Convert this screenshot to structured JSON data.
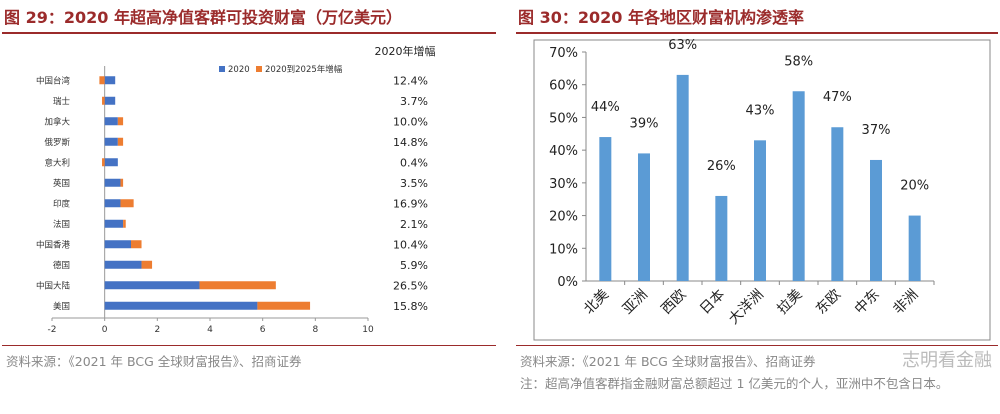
{
  "left": {
    "title": "图 29：2020 年超高净值客群可投资财富（万亿美元）",
    "source": "资料来源：《2021 年 BCG 全球财富报告》、招商证券",
    "growth_header": "2020年增幅"
  },
  "right": {
    "title": "图 30：2020 年各地区财富机构渗透率",
    "source": "资料来源：《2021 年 BCG 全球财富报告》、招商证券",
    "note": "注：超高净值客群指金融财富总额超过 1 亿美元的个人，亚洲中不包含日本。",
    "watermark": "志明看金融"
  },
  "chart_data": [
    {
      "type": "bar",
      "orientation": "horizontal",
      "stacked": true,
      "categories": [
        "中国台湾",
        "瑞士",
        "加拿大",
        "俄罗斯",
        "意大利",
        "英国",
        "印度",
        "法国",
        "中国香港",
        "德国",
        "中国大陆",
        "美国"
      ],
      "series": [
        {
          "name": "2020",
          "color": "#4472c4",
          "values": [
            0.4,
            0.4,
            0.5,
            0.5,
            0.5,
            0.6,
            0.6,
            0.7,
            1.0,
            1.4,
            3.6,
            5.8
          ]
        },
        {
          "name": "2020到2025年增幅",
          "color": "#ed7d31",
          "values": [
            -0.2,
            -0.1,
            0.2,
            0.2,
            -0.1,
            0.1,
            0.5,
            0.1,
            0.4,
            0.4,
            2.9,
            2.0
          ]
        }
      ],
      "growth_labels": [
        "12.4%",
        "3.7%",
        "10.0%",
        "14.8%",
        "0.4%",
        "3.5%",
        "16.9%",
        "2.1%",
        "10.4%",
        "5.9%",
        "26.5%",
        "15.8%"
      ],
      "xlim": [
        -2,
        10
      ],
      "xticks": [
        "-2",
        "0",
        "2",
        "4",
        "6",
        "8",
        "10"
      ],
      "legend": "top-right"
    },
    {
      "type": "bar",
      "categories": [
        "北美",
        "亚洲",
        "西欧",
        "日本",
        "大洋洲",
        "拉美",
        "东欧",
        "中东",
        "非洲"
      ],
      "values": [
        44,
        39,
        63,
        26,
        43,
        58,
        47,
        37,
        20
      ],
      "data_labels": [
        "44%",
        "39%",
        "63%",
        "26%",
        "43%",
        "58%",
        "47%",
        "37%",
        "20%"
      ],
      "color": "#5b9bd5",
      "ylim": [
        0,
        70
      ],
      "yticks": [
        "0%",
        "10%",
        "20%",
        "30%",
        "40%",
        "50%",
        "60%",
        "70%"
      ]
    }
  ]
}
